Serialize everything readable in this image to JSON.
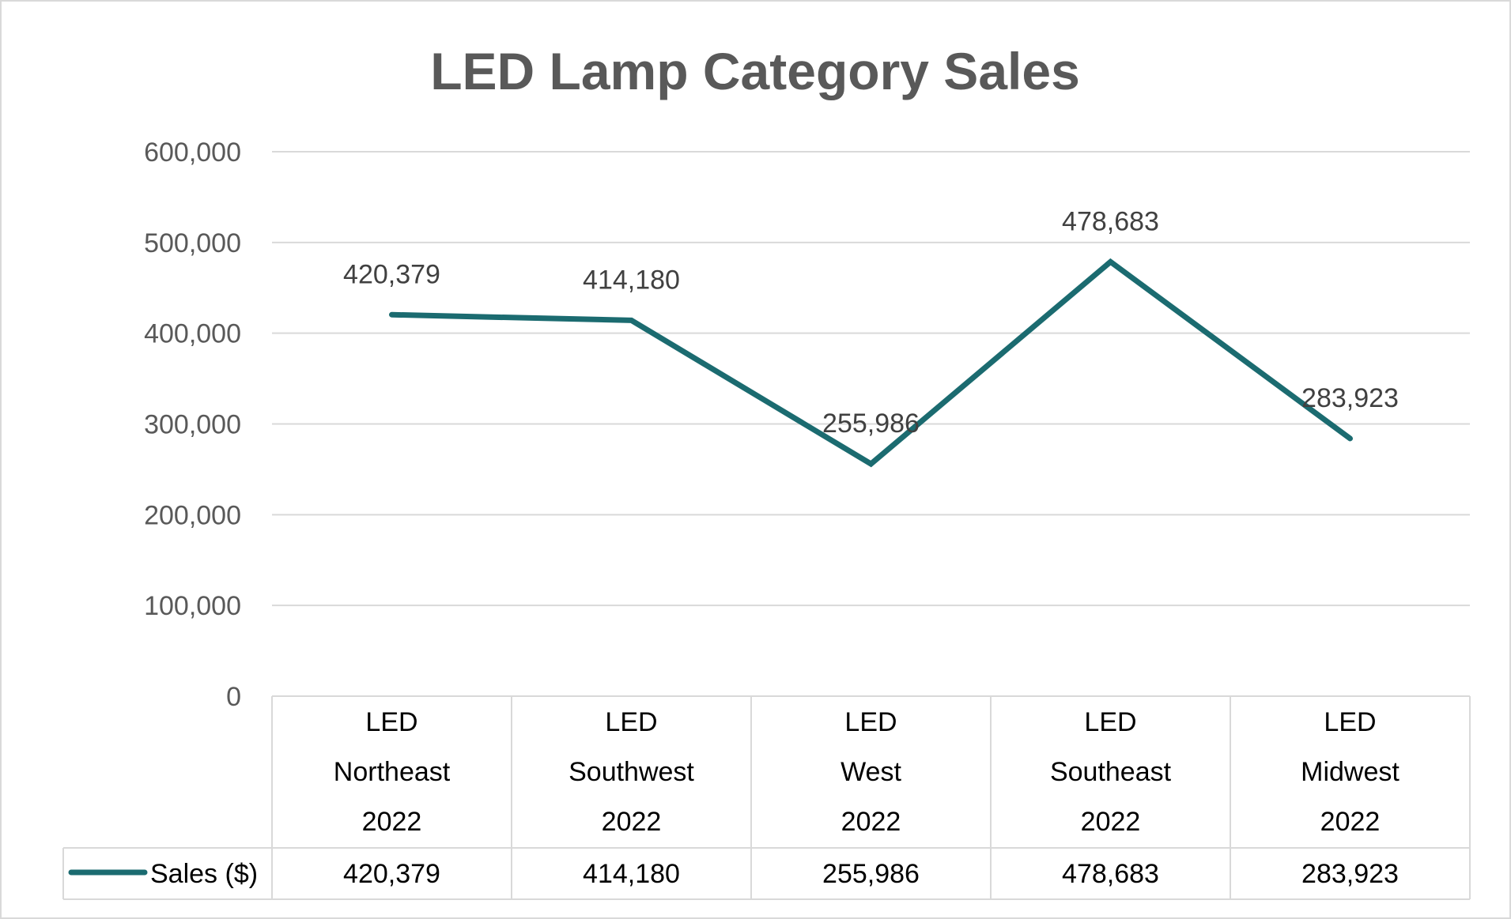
{
  "chart_data": {
    "type": "line",
    "title": "LED Lamp Category Sales",
    "categories": [
      [
        "LED",
        "Northeast",
        "2022"
      ],
      [
        "LED",
        "Southwest",
        "2022"
      ],
      [
        "LED",
        "West",
        "2022"
      ],
      [
        "LED",
        "Southeast",
        "2022"
      ],
      [
        "LED",
        "Midwest",
        "2022"
      ]
    ],
    "series": [
      {
        "name": "Sales ($)",
        "values": [
          420379,
          414180,
          255986,
          478683,
          283923
        ],
        "color": "#1b6b70"
      }
    ],
    "data_labels": [
      "420,379",
      "414,180",
      "255,986",
      "478,683",
      "283,923"
    ],
    "yticks": [
      "0",
      "100,000",
      "200,000",
      "300,000",
      "400,000",
      "500,000",
      "600,000"
    ],
    "ylim": [
      0,
      600000
    ],
    "xlabel": "",
    "ylabel": "",
    "grid": true,
    "data_table": true
  }
}
